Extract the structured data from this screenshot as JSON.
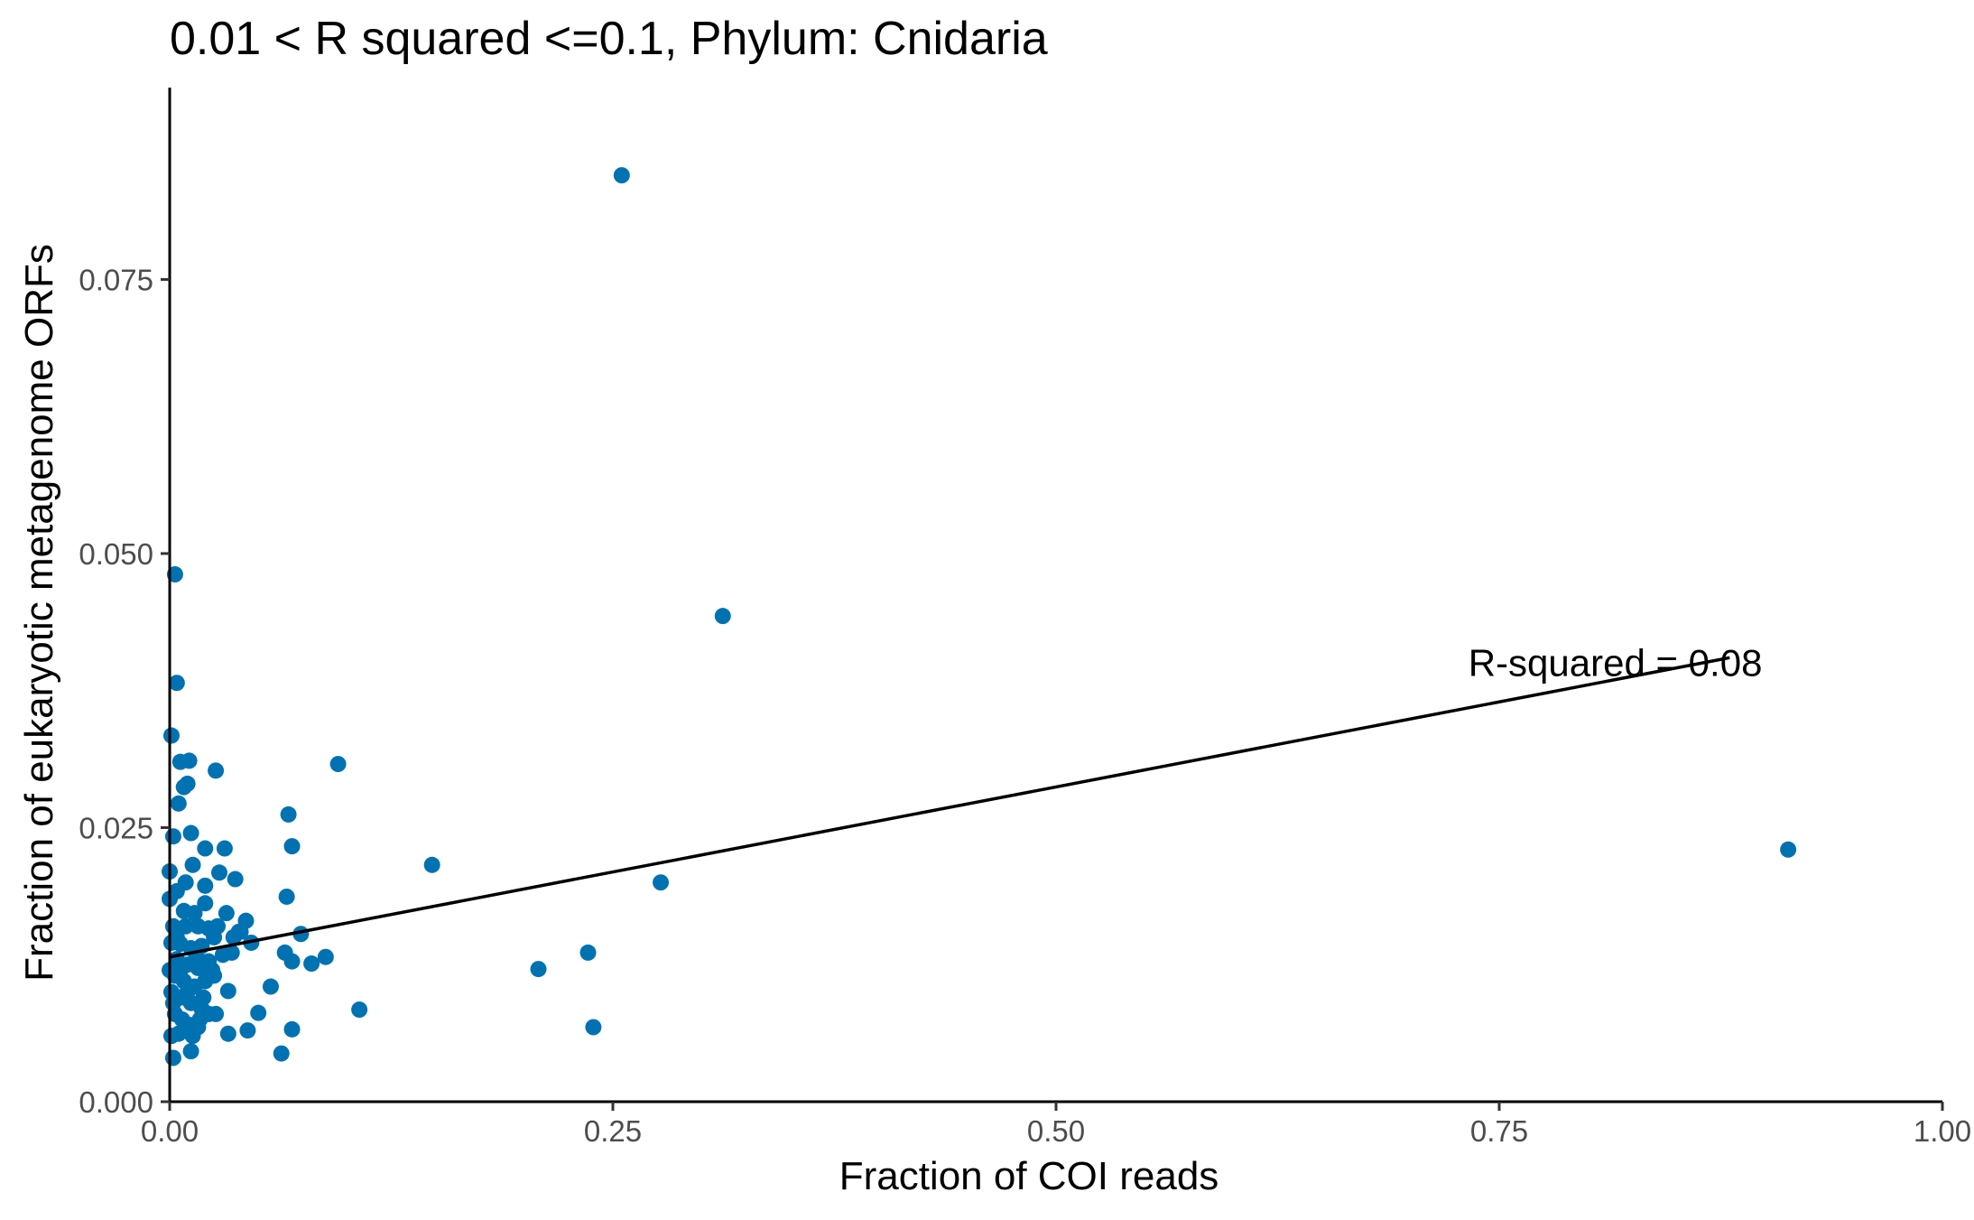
{
  "chart_data": {
    "type": "scatter",
    "title": "0.01 < R squared <=0.1, Phylum:  Cnidaria",
    "xlabel": "Fraction of COI reads",
    "ylabel": "Fraction of eukaryotic metagenome ORFs",
    "xlim": [
      0,
      1
    ],
    "ylim": [
      0,
      0.0925
    ],
    "x_ticks": [
      0,
      0.25,
      0.5,
      0.75,
      1
    ],
    "x_tick_labels": [
      "0.00",
      "0.25",
      "0.50",
      "0.75",
      "1.00"
    ],
    "y_ticks": [
      0,
      0.025,
      0.05,
      0.075
    ],
    "y_tick_labels": [
      "0.000",
      "0.025",
      "0.050",
      "0.075"
    ],
    "grid": false,
    "point_color": "#0072B2",
    "line_color": "#000000",
    "series": [
      {
        "points": [
          [
            0.255,
            0.0845
          ],
          [
            0.312,
            0.0443
          ],
          [
            0.913,
            0.023
          ],
          [
            0.277,
            0.02
          ],
          [
            0.148,
            0.0216
          ],
          [
            0.095,
            0.0308
          ],
          [
            0.208,
            0.0121
          ],
          [
            0.236,
            0.0136
          ],
          [
            0.239,
            0.0068
          ],
          [
            0.107,
            0.0084
          ],
          [
            0.067,
            0.0262
          ],
          [
            0.069,
            0.0233
          ],
          [
            0.066,
            0.0187
          ],
          [
            0.074,
            0.0153
          ],
          [
            0.08,
            0.0126
          ],
          [
            0.088,
            0.0132
          ],
          [
            0.065,
            0.0136
          ],
          [
            0.069,
            0.0128
          ],
          [
            0.057,
            0.0105
          ],
          [
            0.05,
            0.0081
          ],
          [
            0.063,
            0.0044
          ],
          [
            0.069,
            0.0066
          ],
          [
            0.044,
            0.0065
          ],
          [
            0.033,
            0.0062
          ],
          [
            0.033,
            0.0101
          ],
          [
            0.026,
            0.008
          ],
          [
            0.03,
            0.0134
          ],
          [
            0.031,
            0.0231
          ],
          [
            0.037,
            0.0203
          ],
          [
            0.028,
            0.0209
          ],
          [
            0.043,
            0.0165
          ],
          [
            0.046,
            0.0145
          ],
          [
            0.039,
            0.0155
          ],
          [
            0.035,
            0.0136
          ],
          [
            0.032,
            0.0172
          ],
          [
            0.026,
            0.0302
          ],
          [
            0.003,
            0.0481
          ],
          [
            0.004,
            0.0382
          ],
          [
            0.001,
            0.0334
          ],
          [
            0.006,
            0.031
          ],
          [
            0.011,
            0.0311
          ],
          [
            0.008,
            0.0287
          ],
          [
            0.01,
            0.029
          ],
          [
            0.005,
            0.0272
          ],
          [
            0.002,
            0.0242
          ],
          [
            0.012,
            0.0245
          ],
          [
            0.013,
            0.0216
          ],
          [
            0.02,
            0.0231
          ],
          [
            0.02,
            0.0197
          ],
          [
            0.02,
            0.0181
          ],
          [
            0.014,
            0.0172
          ],
          [
            0.009,
            0.02
          ],
          [
            0.004,
            0.0192
          ],
          [
            0.008,
            0.0174
          ],
          [
            0.016,
            0.016
          ],
          [
            0.022,
            0.0158
          ],
          [
            0.025,
            0.015
          ],
          [
            0.018,
            0.0142
          ],
          [
            0.012,
            0.014
          ],
          [
            0.006,
            0.0144
          ],
          [
            0.002,
            0.016
          ],
          [
            0.004,
            0.013
          ],
          [
            0.01,
            0.0125
          ],
          [
            0.016,
            0.0122
          ],
          [
            0.022,
            0.0128
          ],
          [
            0.025,
            0.0115
          ],
          [
            0.02,
            0.011
          ],
          [
            0.014,
            0.0105
          ],
          [
            0.008,
            0.011
          ],
          [
            0.003,
            0.0115
          ],
          [
            0.001,
            0.01
          ],
          [
            0.006,
            0.0095
          ],
          [
            0.012,
            0.009
          ],
          [
            0.018,
            0.0085
          ],
          [
            0.022,
            0.008
          ],
          [
            0.017,
            0.0075
          ],
          [
            0.011,
            0.007
          ],
          [
            0.007,
            0.0075
          ],
          [
            0.003,
            0.008
          ],
          [
            0.001,
            0.006
          ],
          [
            0.005,
            0.0062
          ],
          [
            0.013,
            0.006
          ],
          [
            0.016,
            0.0068
          ],
          [
            0.012,
            0.0046
          ],
          [
            0.002,
            0.004
          ],
          [
            0.0,
            0.021
          ],
          [
            0.0,
            0.0185
          ],
          [
            0.001,
            0.0145
          ],
          [
            0.0,
            0.012
          ],
          [
            0.004,
            0.015
          ],
          [
            0.009,
            0.016
          ],
          [
            0.015,
            0.0135
          ],
          [
            0.027,
            0.016
          ],
          [
            0.036,
            0.015
          ],
          [
            0.04,
            0.0155
          ],
          [
            0.024,
            0.012
          ],
          [
            0.019,
            0.0095
          ],
          [
            0.01,
            0.01
          ],
          [
            0.006,
            0.012
          ],
          [
            0.002,
            0.009
          ]
        ]
      }
    ],
    "trendline": {
      "x": [
        0,
        0.88
      ],
      "y": [
        0.0132,
        0.0405
      ]
    },
    "annotation": {
      "text": "R-squared =  0.08",
      "x": 0.73,
      "y": 0.0405
    }
  }
}
